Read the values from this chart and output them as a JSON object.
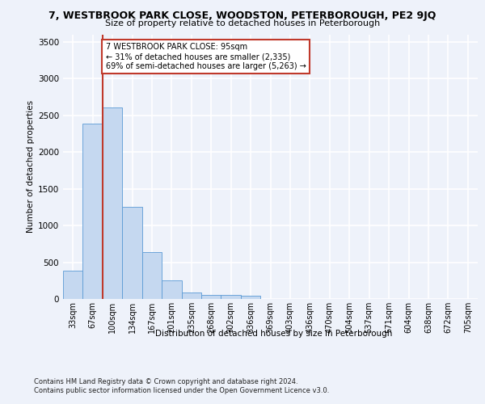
{
  "title_line1": "7, WESTBROOK PARK CLOSE, WOODSTON, PETERBOROUGH, PE2 9JQ",
  "title_line2": "Size of property relative to detached houses in Peterborough",
  "xlabel": "Distribution of detached houses by size in Peterborough",
  "ylabel": "Number of detached properties",
  "categories": [
    "33sqm",
    "67sqm",
    "100sqm",
    "134sqm",
    "167sqm",
    "201sqm",
    "235sqm",
    "268sqm",
    "302sqm",
    "336sqm",
    "369sqm",
    "403sqm",
    "436sqm",
    "470sqm",
    "504sqm",
    "537sqm",
    "571sqm",
    "604sqm",
    "638sqm",
    "672sqm",
    "705sqm"
  ],
  "values": [
    380,
    2390,
    2600,
    1250,
    640,
    255,
    90,
    55,
    55,
    40,
    0,
    0,
    0,
    0,
    0,
    0,
    0,
    0,
    0,
    0,
    0
  ],
  "bar_color": "#c5d8f0",
  "bar_edge_color": "#5b9bd5",
  "vline_x_index": 1.5,
  "vline_color": "#c0392b",
  "annotation_text": "7 WESTBROOK PARK CLOSE: 95sqm\n← 31% of detached houses are smaller (2,335)\n69% of semi-detached houses are larger (5,263) →",
  "annotation_box_color": "#c0392b",
  "ylim": [
    0,
    3600
  ],
  "yticks": [
    0,
    500,
    1000,
    1500,
    2000,
    2500,
    3000,
    3500
  ],
  "footer_text": "Contains HM Land Registry data © Crown copyright and database right 2024.\nContains public sector information licensed under the Open Government Licence v3.0.",
  "bg_color": "#eef2fa",
  "plot_bg_color": "#eef2fa",
  "grid_color": "#ffffff"
}
